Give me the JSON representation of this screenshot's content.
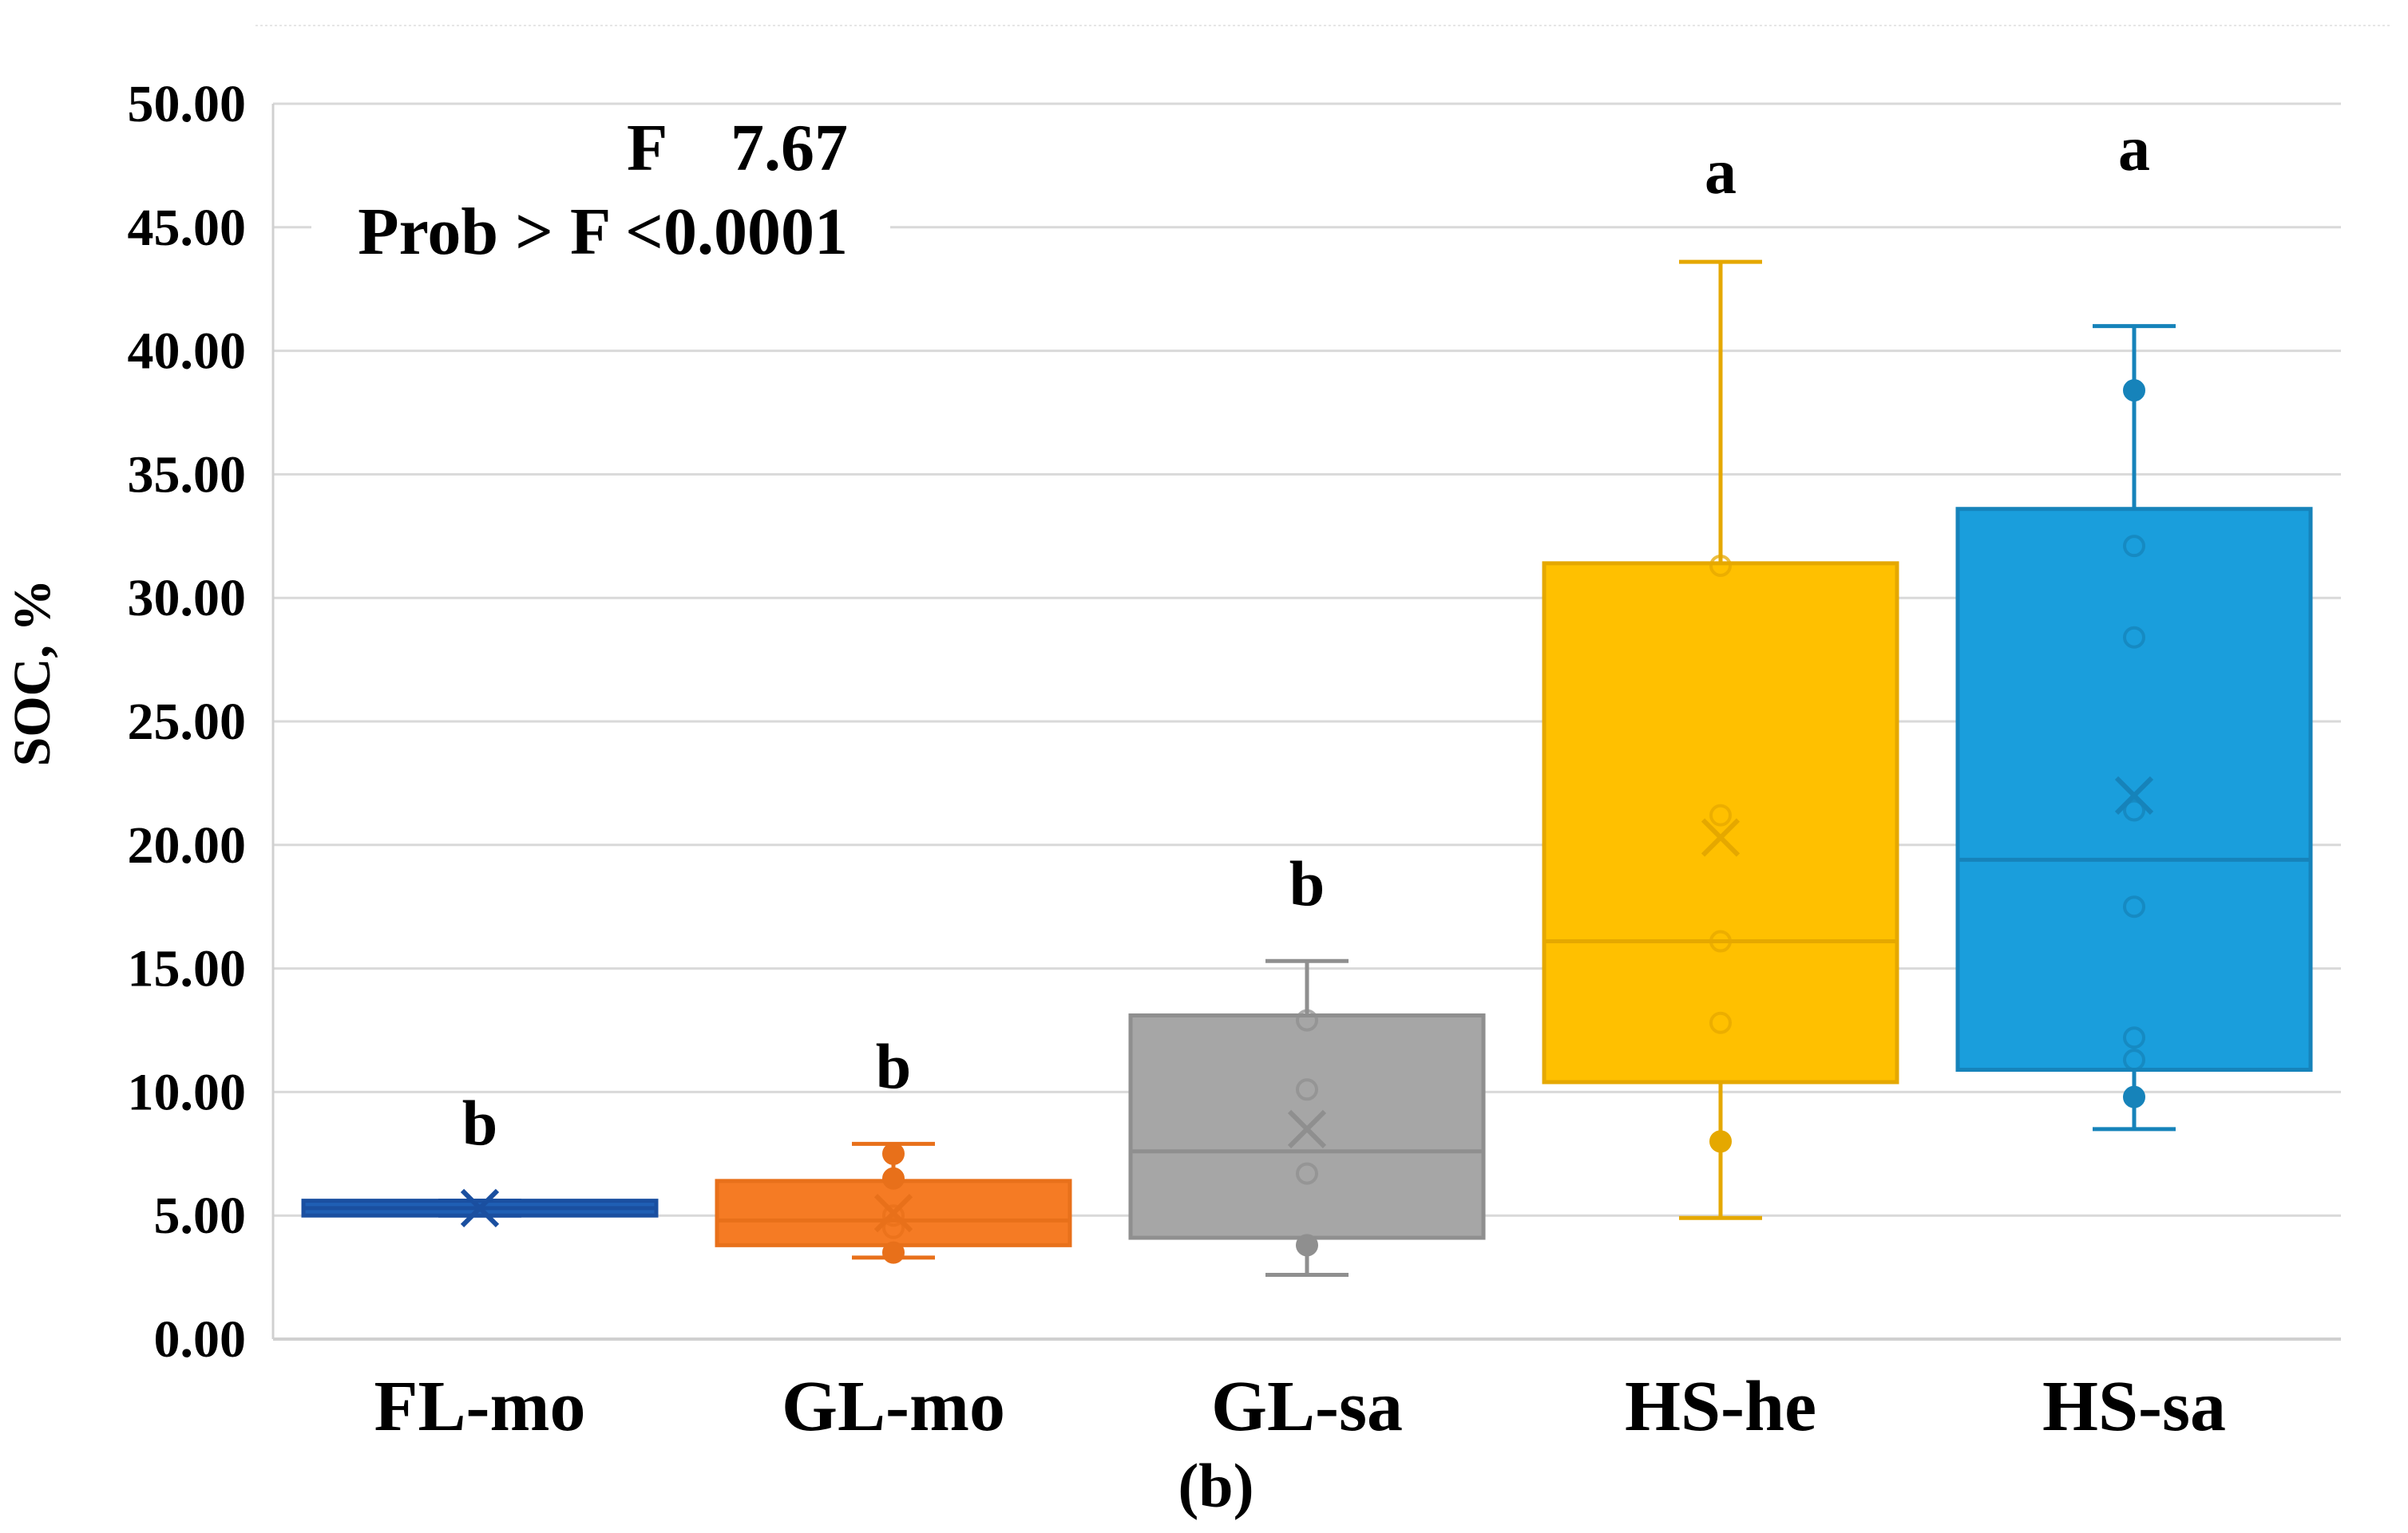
{
  "chart_data": {
    "type": "box",
    "panel_label": "(b)",
    "ylabel": "SOC, %",
    "xlabel": "",
    "ylim": [
      0,
      50
    ],
    "y_ticks": [
      "0.00",
      "5.00",
      "10.00",
      "15.00",
      "20.00",
      "25.00",
      "30.00",
      "35.00",
      "40.00",
      "45.00",
      "50.00"
    ],
    "grid": true,
    "stats": {
      "f_label": "F",
      "f_value": "7.67",
      "prob_text": "Prob > F <0.0001"
    },
    "categories": [
      "FL-mo",
      "GL-mo",
      "GL-sa",
      "HS-he",
      "HS-sa"
    ],
    "colors": [
      "#1F5FB4",
      "#F57B24",
      "#A6A6A6",
      "#FFC000",
      "#1A9EDC"
    ],
    "stroke_colors": [
      "#1A4FA0",
      "#E8701A",
      "#8F8F8F",
      "#E5A800",
      "#1683BA"
    ],
    "groups": [
      {
        "name": "FL-mo",
        "letter": "b",
        "whisker_low": 5.0,
        "q1": 5.0,
        "median": 5.3,
        "q3": 5.6,
        "whisker_high": 5.6,
        "mean": 5.3,
        "points": [],
        "outliers": []
      },
      {
        "name": "GL-mo",
        "letter": "b",
        "whisker_low": 3.3,
        "q1": 3.8,
        "median": 4.8,
        "q3": 6.4,
        "whisker_high": 7.9,
        "mean": 5.1,
        "points": [
          3.5,
          4.5,
          5.0,
          6.5,
          7.5
        ],
        "outliers": []
      },
      {
        "name": "GL-sa",
        "letter": "b",
        "whisker_low": 2.6,
        "q1": 4.1,
        "median": 7.6,
        "q3": 13.1,
        "whisker_high": 15.3,
        "mean": 8.5,
        "points": [
          3.8,
          6.7,
          10.1,
          12.9
        ],
        "outliers": []
      },
      {
        "name": "HS-he",
        "letter": "a",
        "whisker_low": 4.9,
        "q1": 10.4,
        "median": 16.1,
        "q3": 31.4,
        "whisker_high": 43.6,
        "mean": 20.3,
        "points": [
          8.0,
          12.8,
          16.1,
          21.2,
          31.3
        ],
        "outliers": []
      },
      {
        "name": "HS-sa",
        "letter": "a",
        "whisker_low": 8.5,
        "q1": 10.9,
        "median": 19.4,
        "q3": 33.6,
        "whisker_high": 41.0,
        "mean": 22.0,
        "points": [
          9.8,
          11.3,
          12.2,
          17.5,
          21.4,
          28.4,
          32.1,
          38.4
        ],
        "outliers": []
      }
    ]
  }
}
